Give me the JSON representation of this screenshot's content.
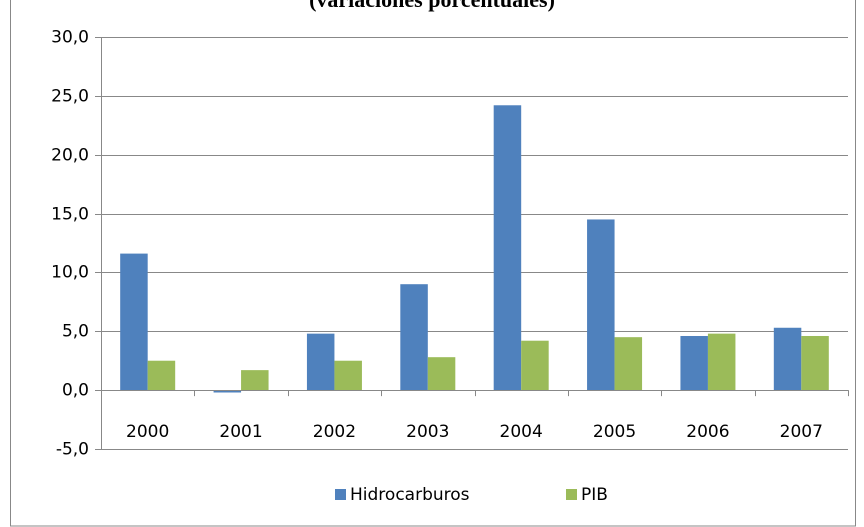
{
  "chart_data": {
    "type": "bar",
    "title": "(variaciones porcentuales)",
    "categories": [
      "2000",
      "2001",
      "2002",
      "2003",
      "2004",
      "2005",
      "2006",
      "2007"
    ],
    "series": [
      {
        "name": "Hidrocarburos",
        "color": "#4f81bd",
        "values": [
          11.6,
          -0.2,
          4.8,
          9.0,
          24.2,
          14.5,
          4.6,
          5.3
        ]
      },
      {
        "name": "PIB",
        "color": "#9bbb59",
        "values": [
          2.5,
          1.7,
          2.5,
          2.8,
          4.2,
          4.5,
          4.8,
          4.6
        ]
      }
    ],
    "ylim": [
      -5,
      30
    ],
    "yticks": [
      {
        "value": -5,
        "label": "-5,0"
      },
      {
        "value": 0,
        "label": "0,0"
      },
      {
        "value": 5,
        "label": "5,0"
      },
      {
        "value": 10,
        "label": "10,0"
      },
      {
        "value": 15,
        "label": "15,0"
      },
      {
        "value": 20,
        "label": "20,0"
      },
      {
        "value": 25,
        "label": "25,0"
      },
      {
        "value": 30,
        "label": "30,0"
      }
    ],
    "grid": true,
    "legend": "bottom"
  }
}
